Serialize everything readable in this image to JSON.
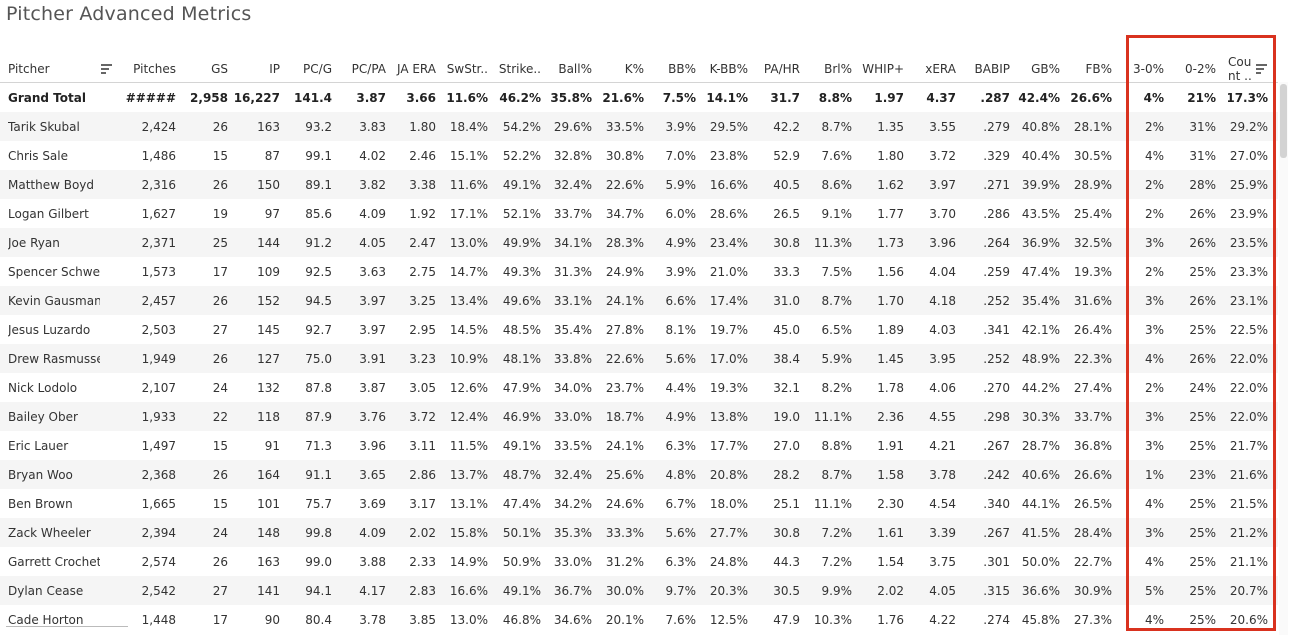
{
  "title": "Pitcher Advanced Metrics",
  "columns": [
    "Pitcher",
    "Pitches",
    "GS",
    "IP",
    "PC/G",
    "PC/PA",
    "JA ERA",
    "SwStr..",
    "Strike..",
    "Ball%",
    "K%",
    "BB%",
    "K-BB%",
    "PA/HR",
    "Brl%",
    "WHIP+",
    "xERA",
    "BABIP",
    "GB%",
    "FB%",
    "3-0%",
    "0-2%",
    "Cou\nnt .."
  ],
  "count_header_lines": [
    "Cou",
    "nt .."
  ],
  "icons": {
    "pitcher_sort": "sort-descending-icon",
    "count_sort": "sort-descending-icon"
  },
  "colors": {
    "highlight": "#d9321f",
    "row_alt": "#f5f5f5"
  },
  "grand_total": [
    "Grand Total",
    "#####",
    "2,958",
    "16,227",
    "141.4",
    "3.87",
    "3.66",
    "11.6%",
    "46.2%",
    "35.8%",
    "21.6%",
    "7.5%",
    "14.1%",
    "31.7",
    "8.8%",
    "1.97",
    "4.37",
    ".287",
    "42.4%",
    "26.6%",
    "4%",
    "21%",
    "17.3%"
  ],
  "rows": [
    [
      "Tarik Skubal",
      "2,424",
      "26",
      "163",
      "93.2",
      "3.83",
      "1.80",
      "18.4%",
      "54.2%",
      "29.6%",
      "33.5%",
      "3.9%",
      "29.5%",
      "42.2",
      "8.7%",
      "1.35",
      "3.55",
      ".279",
      "40.8%",
      "28.1%",
      "2%",
      "31%",
      "29.2%"
    ],
    [
      "Chris Sale",
      "1,486",
      "15",
      "87",
      "99.1",
      "4.02",
      "2.46",
      "15.1%",
      "52.2%",
      "32.8%",
      "30.8%",
      "7.0%",
      "23.8%",
      "52.9",
      "7.6%",
      "1.80",
      "3.72",
      ".329",
      "40.4%",
      "30.5%",
      "4%",
      "31%",
      "27.0%"
    ],
    [
      "Matthew Boyd",
      "2,316",
      "26",
      "150",
      "89.1",
      "3.82",
      "3.38",
      "11.6%",
      "49.1%",
      "32.4%",
      "22.6%",
      "5.9%",
      "16.6%",
      "40.5",
      "8.6%",
      "1.62",
      "3.97",
      ".271",
      "39.9%",
      "28.9%",
      "2%",
      "28%",
      "25.9%"
    ],
    [
      "Logan Gilbert",
      "1,627",
      "19",
      "97",
      "85.6",
      "4.09",
      "1.92",
      "17.1%",
      "52.1%",
      "33.7%",
      "34.7%",
      "6.0%",
      "28.6%",
      "26.5",
      "9.1%",
      "1.77",
      "3.70",
      ".286",
      "43.5%",
      "25.4%",
      "2%",
      "26%",
      "23.9%"
    ],
    [
      "Joe Ryan",
      "2,371",
      "25",
      "144",
      "91.2",
      "4.05",
      "2.47",
      "13.0%",
      "49.9%",
      "34.1%",
      "28.3%",
      "4.9%",
      "23.4%",
      "30.8",
      "11.3%",
      "1.73",
      "3.96",
      ".264",
      "36.9%",
      "32.5%",
      "3%",
      "26%",
      "23.5%"
    ],
    [
      "Spencer Schwellenb..",
      "1,573",
      "17",
      "109",
      "92.5",
      "3.63",
      "2.75",
      "14.7%",
      "49.3%",
      "31.3%",
      "24.9%",
      "3.9%",
      "21.0%",
      "33.3",
      "7.5%",
      "1.56",
      "4.04",
      ".259",
      "47.4%",
      "19.3%",
      "2%",
      "25%",
      "23.3%"
    ],
    [
      "Kevin Gausman",
      "2,457",
      "26",
      "152",
      "94.5",
      "3.97",
      "3.25",
      "13.4%",
      "49.6%",
      "33.1%",
      "24.1%",
      "6.6%",
      "17.4%",
      "31.0",
      "8.7%",
      "1.70",
      "4.18",
      ".252",
      "35.4%",
      "31.6%",
      "3%",
      "26%",
      "23.1%"
    ],
    [
      "Jesus Luzardo",
      "2,503",
      "27",
      "145",
      "92.7",
      "3.97",
      "2.95",
      "14.5%",
      "48.5%",
      "35.4%",
      "27.8%",
      "8.1%",
      "19.7%",
      "45.0",
      "6.5%",
      "1.89",
      "4.03",
      ".341",
      "42.1%",
      "26.4%",
      "3%",
      "25%",
      "22.5%"
    ],
    [
      "Drew Rasmussen",
      "1,949",
      "26",
      "127",
      "75.0",
      "3.91",
      "3.23",
      "10.9%",
      "48.1%",
      "33.8%",
      "22.6%",
      "5.6%",
      "17.0%",
      "38.4",
      "5.9%",
      "1.45",
      "3.95",
      ".252",
      "48.9%",
      "22.3%",
      "4%",
      "26%",
      "22.0%"
    ],
    [
      "Nick Lodolo",
      "2,107",
      "24",
      "132",
      "87.8",
      "3.87",
      "3.05",
      "12.6%",
      "47.9%",
      "34.0%",
      "23.7%",
      "4.4%",
      "19.3%",
      "32.1",
      "8.2%",
      "1.78",
      "4.06",
      ".270",
      "44.2%",
      "27.4%",
      "2%",
      "24%",
      "22.0%"
    ],
    [
      "Bailey Ober",
      "1,933",
      "22",
      "118",
      "87.9",
      "3.76",
      "3.72",
      "12.4%",
      "46.9%",
      "33.0%",
      "18.7%",
      "4.9%",
      "13.8%",
      "19.0",
      "11.1%",
      "2.36",
      "4.55",
      ".298",
      "30.3%",
      "33.7%",
      "3%",
      "25%",
      "22.0%"
    ],
    [
      "Eric Lauer",
      "1,497",
      "15",
      "91",
      "71.3",
      "3.96",
      "3.11",
      "11.5%",
      "49.1%",
      "33.5%",
      "24.1%",
      "6.3%",
      "17.7%",
      "27.0",
      "8.8%",
      "1.91",
      "4.21",
      ".267",
      "28.7%",
      "36.8%",
      "3%",
      "25%",
      "21.7%"
    ],
    [
      "Bryan Woo",
      "2,368",
      "26",
      "164",
      "91.1",
      "3.65",
      "2.86",
      "13.7%",
      "48.7%",
      "32.4%",
      "25.6%",
      "4.8%",
      "20.8%",
      "28.2",
      "8.7%",
      "1.58",
      "3.78",
      ".242",
      "40.6%",
      "26.6%",
      "1%",
      "23%",
      "21.6%"
    ],
    [
      "Ben Brown",
      "1,665",
      "15",
      "101",
      "75.7",
      "3.69",
      "3.17",
      "13.1%",
      "47.4%",
      "34.2%",
      "24.6%",
      "6.7%",
      "18.0%",
      "25.1",
      "11.1%",
      "2.30",
      "4.54",
      ".340",
      "44.1%",
      "26.5%",
      "4%",
      "25%",
      "21.5%"
    ],
    [
      "Zack Wheeler",
      "2,394",
      "24",
      "148",
      "99.8",
      "4.09",
      "2.02",
      "15.8%",
      "50.1%",
      "35.3%",
      "33.3%",
      "5.6%",
      "27.7%",
      "30.8",
      "7.2%",
      "1.61",
      "3.39",
      ".267",
      "41.5%",
      "28.4%",
      "3%",
      "25%",
      "21.2%"
    ],
    [
      "Garrett Crochet",
      "2,574",
      "26",
      "163",
      "99.0",
      "3.88",
      "2.33",
      "14.9%",
      "50.9%",
      "33.0%",
      "31.2%",
      "6.3%",
      "24.8%",
      "44.3",
      "7.2%",
      "1.54",
      "3.75",
      ".301",
      "50.0%",
      "22.7%",
      "4%",
      "25%",
      "21.1%"
    ],
    [
      "Dylan Cease",
      "2,542",
      "27",
      "141",
      "94.1",
      "4.17",
      "2.83",
      "16.6%",
      "49.1%",
      "36.7%",
      "30.0%",
      "9.7%",
      "20.3%",
      "30.5",
      "9.9%",
      "2.02",
      "4.05",
      ".315",
      "36.6%",
      "30.9%",
      "5%",
      "25%",
      "20.7%"
    ],
    [
      "Cade Horton",
      "1,448",
      "17",
      "90",
      "80.4",
      "3.78",
      "3.85",
      "13.0%",
      "46.8%",
      "34.6%",
      "20.1%",
      "7.6%",
      "12.5%",
      "47.9",
      "10.3%",
      "1.76",
      "4.22",
      ".274",
      "45.8%",
      "27.3%",
      "4%",
      "25%",
      "20.6%"
    ]
  ]
}
